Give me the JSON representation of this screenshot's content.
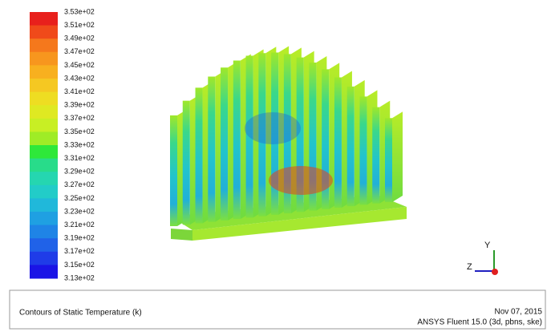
{
  "colorbar": {
    "labels": [
      "3.53e+02",
      "3.51e+02",
      "3.49e+02",
      "3.47e+02",
      "3.45e+02",
      "3.43e+02",
      "3.41e+02",
      "3.39e+02",
      "3.37e+02",
      "3.35e+02",
      "3.33e+02",
      "3.31e+02",
      "3.29e+02",
      "3.27e+02",
      "3.25e+02",
      "3.23e+02",
      "3.21e+02",
      "3.19e+02",
      "3.17e+02",
      "3.15e+02",
      "3.13e+02"
    ],
    "colors": [
      "#e8201c",
      "#f04a1a",
      "#f5781c",
      "#f7961e",
      "#f8b01f",
      "#f5c822",
      "#eedd22",
      "#dfe922",
      "#c8ef24",
      "#9fec26",
      "#2ee83a",
      "#28dc8a",
      "#25d6b0",
      "#22ccc8",
      "#20b8da",
      "#1fa0e2",
      "#1f84e6",
      "#2062e8",
      "#1f3ce8",
      "#1a14e6"
    ]
  },
  "triad": {
    "y_label": "Y",
    "z_label": "Z"
  },
  "footer": {
    "title": "Contours of Static Temperature (k)",
    "date": "Nov 07, 2015",
    "software": "ANSYS Fluent 15.0 (3d, pbns, ske)"
  }
}
